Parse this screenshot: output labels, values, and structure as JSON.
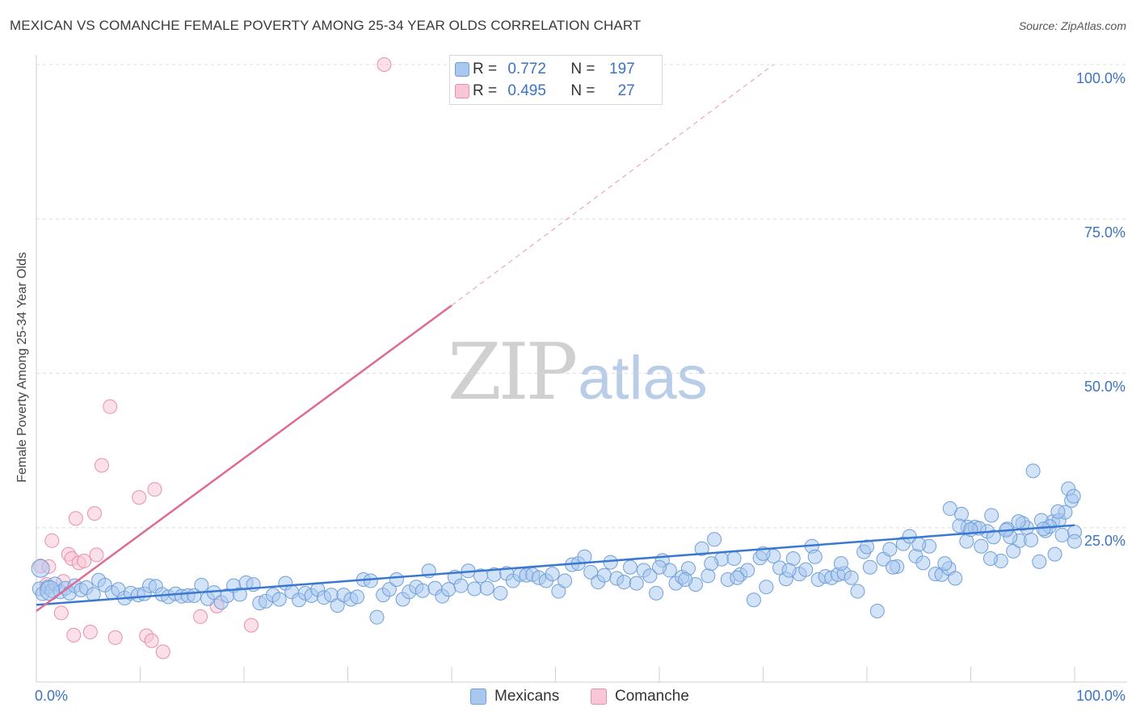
{
  "title": "MEXICAN VS COMANCHE FEMALE POVERTY AMONG 25-34 YEAR OLDS CORRELATION CHART",
  "source": "Source: ZipAtlas.com",
  "watermark": {
    "left": "ZIP",
    "right": "atlas"
  },
  "legend_top": {
    "rows": [
      {
        "r_label": "R = ",
        "r_value": "0.772",
        "n_label": "N = ",
        "n_value": "197",
        "color": "#a8c8f0",
        "border": "#6f9fd8"
      },
      {
        "r_label": "R = ",
        "r_value": "0.495",
        "n_label": "N = ",
        "n_value": "27",
        "color": "#f8c6d6",
        "border": "#e88fac"
      }
    ]
  },
  "legend_bottom": [
    {
      "label": "Mexicans",
      "color": "#a8c8f0",
      "border": "#6f9fd8"
    },
    {
      "label": "Comanche",
      "color": "#f8c6d6",
      "border": "#e88fac"
    }
  ],
  "chart_data": {
    "type": "scatter",
    "title": "MEXICAN VS COMANCHE FEMALE POVERTY AMONG 25-34 YEAR OLDS CORRELATION CHART",
    "xlabel": "",
    "ylabel": "Female Poverty Among 25-34 Year Olds",
    "xlim": [
      0,
      100
    ],
    "ylim": [
      0,
      100
    ],
    "x_tick_labels": [
      "0.0%",
      "100.0%"
    ],
    "y_tick_labels": [
      "25.0%",
      "50.0%",
      "75.0%",
      "100.0%"
    ],
    "y_ticks": [
      25,
      50,
      75,
      100
    ],
    "grid": true,
    "legend_position": "top-center",
    "colors": {
      "mexicans": "#6f9fd8",
      "mexicans_fill": "#a8c8f0",
      "mexicans_line": "#3a78d0",
      "comanche": "#e88fac",
      "comanche_fill": "#f8c6d6",
      "comanche_line": "#e06a94"
    },
    "series": [
      {
        "name": "Mexicans",
        "r": 0.772,
        "n": 197,
        "trend": {
          "x": [
            0,
            100
          ],
          "y": [
            12.5,
            25.4
          ]
        },
        "points": [
          [
            0.3,
            15.1
          ],
          [
            0.6,
            14.3
          ],
          [
            1.1,
            15.4
          ],
          [
            1.5,
            14.8
          ],
          [
            1.8,
            15.9
          ],
          [
            2.3,
            14.6
          ],
          [
            2.8,
            15.2
          ],
          [
            3.2,
            14.4
          ],
          [
            3.7,
            15.6
          ],
          [
            4.3,
            14.9
          ],
          [
            4.8,
            15.3
          ],
          [
            5.5,
            14.2
          ],
          [
            6.0,
            16.5
          ],
          [
            6.6,
            15.7
          ],
          [
            7.3,
            14.5
          ],
          [
            7.9,
            15.0
          ],
          [
            8.5,
            13.6
          ],
          [
            9.1,
            14.4
          ],
          [
            9.8,
            14.1
          ],
          [
            10.4,
            14.3
          ],
          [
            10.9,
            15.6
          ],
          [
            11.5,
            15.5
          ],
          [
            12.1,
            14.2
          ],
          [
            12.7,
            13.8
          ],
          [
            13.4,
            14.3
          ],
          [
            14.0,
            13.9
          ],
          [
            14.6,
            14.0
          ],
          [
            15.2,
            14.0
          ],
          [
            15.9,
            15.7
          ],
          [
            16.5,
            13.5
          ],
          [
            17.1,
            14.5
          ],
          [
            17.8,
            12.9
          ],
          [
            18.4,
            14.0
          ],
          [
            19.0,
            15.6
          ],
          [
            19.6,
            14.2
          ],
          [
            20.2,
            16.1
          ],
          [
            20.9,
            15.8
          ],
          [
            21.5,
            12.8
          ],
          [
            22.1,
            13.1
          ],
          [
            22.8,
            14.1
          ],
          [
            23.4,
            13.4
          ],
          [
            24.0,
            16.0
          ],
          [
            24.6,
            14.6
          ],
          [
            25.3,
            13.3
          ],
          [
            25.9,
            14.4
          ],
          [
            26.5,
            14.0
          ],
          [
            27.1,
            15.0
          ],
          [
            27.7,
            13.7
          ],
          [
            28.4,
            14.1
          ],
          [
            29.0,
            12.4
          ],
          [
            29.6,
            14.1
          ],
          [
            30.3,
            13.4
          ],
          [
            30.9,
            13.8
          ],
          [
            31.5,
            16.6
          ],
          [
            32.2,
            16.4
          ],
          [
            32.8,
            10.5
          ],
          [
            33.4,
            14.1
          ],
          [
            34.0,
            15.0
          ],
          [
            34.7,
            16.6
          ],
          [
            35.3,
            13.4
          ],
          [
            35.9,
            14.6
          ],
          [
            36.6,
            15.4
          ],
          [
            37.2,
            14.8
          ],
          [
            37.8,
            18.0
          ],
          [
            38.4,
            15.2
          ],
          [
            39.1,
            13.9
          ],
          [
            39.7,
            15.0
          ],
          [
            40.3,
            17.0
          ],
          [
            40.9,
            15.6
          ],
          [
            41.6,
            18.0
          ],
          [
            42.2,
            15.1
          ],
          [
            42.8,
            17.2
          ],
          [
            43.4,
            15.2
          ],
          [
            44.1,
            17.4
          ],
          [
            44.7,
            14.4
          ],
          [
            45.3,
            17.6
          ],
          [
            45.9,
            16.4
          ],
          [
            46.6,
            17.4
          ],
          [
            47.2,
            17.3
          ],
          [
            47.8,
            17.4
          ],
          [
            48.4,
            16.9
          ],
          [
            49.1,
            16.4
          ],
          [
            49.7,
            17.5
          ],
          [
            50.3,
            14.7
          ],
          [
            50.9,
            16.4
          ],
          [
            51.6,
            19.0
          ],
          [
            52.2,
            19.2
          ],
          [
            52.8,
            20.3
          ],
          [
            53.4,
            17.8
          ],
          [
            54.1,
            16.2
          ],
          [
            54.7,
            17.3
          ],
          [
            55.3,
            19.4
          ],
          [
            55.9,
            16.8
          ],
          [
            56.6,
            16.2
          ],
          [
            57.2,
            18.6
          ],
          [
            57.8,
            16.0
          ],
          [
            58.5,
            18.1
          ],
          [
            59.1,
            17.2
          ],
          [
            59.7,
            14.4
          ],
          [
            60.3,
            19.7
          ],
          [
            61.0,
            18.1
          ],
          [
            61.6,
            16.0
          ],
          [
            62.2,
            17.0
          ],
          [
            62.8,
            18.4
          ],
          [
            63.5,
            15.8
          ],
          [
            64.1,
            21.6
          ],
          [
            64.7,
            17.2
          ],
          [
            65.3,
            23.1
          ],
          [
            66.0,
            19.9
          ],
          [
            66.6,
            16.6
          ],
          [
            67.2,
            20.0
          ],
          [
            67.8,
            17.4
          ],
          [
            68.5,
            18.1
          ],
          [
            69.1,
            13.3
          ],
          [
            69.7,
            20.1
          ],
          [
            70.3,
            15.4
          ],
          [
            71.0,
            20.4
          ],
          [
            71.6,
            18.5
          ],
          [
            72.2,
            16.7
          ],
          [
            72.9,
            20.0
          ],
          [
            73.5,
            17.5
          ],
          [
            74.1,
            18.2
          ],
          [
            74.7,
            22.0
          ],
          [
            75.3,
            16.6
          ],
          [
            76.0,
            17.1
          ],
          [
            76.6,
            16.9
          ],
          [
            77.2,
            17.4
          ],
          [
            77.8,
            17.6
          ],
          [
            78.5,
            16.9
          ],
          [
            79.1,
            14.7
          ],
          [
            79.7,
            21.1
          ],
          [
            80.3,
            18.6
          ],
          [
            81.0,
            11.5
          ],
          [
            81.6,
            19.9
          ],
          [
            82.2,
            21.5
          ],
          [
            82.9,
            18.7
          ],
          [
            83.5,
            22.4
          ],
          [
            84.1,
            23.6
          ],
          [
            84.7,
            20.4
          ],
          [
            85.4,
            19.3
          ],
          [
            86.0,
            22.0
          ],
          [
            86.6,
            17.5
          ],
          [
            87.2,
            17.4
          ],
          [
            87.9,
            18.4
          ],
          [
            88.5,
            16.8
          ],
          [
            89.1,
            27.2
          ],
          [
            89.7,
            25.1
          ],
          [
            90.4,
            25.1
          ],
          [
            91.0,
            22.0
          ],
          [
            91.6,
            24.4
          ],
          [
            92.2,
            23.5
          ],
          [
            92.9,
            19.6
          ],
          [
            93.5,
            24.8
          ],
          [
            94.1,
            21.2
          ],
          [
            94.7,
            22.9
          ],
          [
            95.4,
            25.0
          ],
          [
            96.0,
            34.2
          ],
          [
            96.6,
            19.5
          ],
          [
            97.2,
            24.5
          ],
          [
            97.9,
            26.0
          ],
          [
            98.5,
            26.2
          ],
          [
            99.1,
            27.5
          ],
          [
            99.7,
            29.4
          ],
          [
            100.0,
            24.3
          ],
          [
            88.0,
            28.1
          ],
          [
            90.8,
            24.9
          ],
          [
            92.0,
            27.0
          ],
          [
            93.8,
            23.5
          ],
          [
            95.0,
            25.7
          ],
          [
            96.8,
            26.2
          ],
          [
            97.6,
            25.2
          ],
          [
            98.4,
            27.6
          ],
          [
            99.4,
            31.3
          ],
          [
            100.0,
            22.8
          ],
          [
            88.9,
            25.3
          ],
          [
            89.6,
            22.8
          ],
          [
            91.9,
            20.0
          ],
          [
            93.4,
            24.6
          ],
          [
            94.6,
            26.0
          ],
          [
            95.8,
            23.0
          ],
          [
            97.0,
            24.8
          ],
          [
            98.1,
            20.7
          ],
          [
            98.8,
            23.8
          ],
          [
            99.9,
            30.1
          ],
          [
            60.0,
            18.6
          ],
          [
            62.5,
            16.6
          ],
          [
            65.0,
            19.2
          ],
          [
            67.5,
            16.9
          ],
          [
            70.0,
            20.8
          ],
          [
            72.5,
            18.1
          ],
          [
            75.0,
            20.3
          ],
          [
            77.5,
            19.2
          ],
          [
            80.0,
            21.9
          ],
          [
            82.5,
            18.6
          ],
          [
            85.0,
            22.3
          ],
          [
            87.5,
            19.2
          ],
          [
            90.0,
            24.7
          ]
        ]
      },
      {
        "name": "Comanche",
        "r": 0.495,
        "n": 27,
        "trend": {
          "x": [
            0,
            40
          ],
          "y": [
            11.5,
            61.0
          ]
        },
        "trend_dashed": {
          "x": [
            40,
            71
          ],
          "y": [
            61.0,
            100.0
          ]
        },
        "points": [
          [
            0.4,
            18.8
          ],
          [
            1.2,
            18.7
          ],
          [
            1.5,
            22.9
          ],
          [
            2.4,
            11.2
          ],
          [
            2.6,
            16.3
          ],
          [
            3.1,
            20.7
          ],
          [
            3.4,
            20.0
          ],
          [
            3.6,
            7.6
          ],
          [
            3.8,
            26.5
          ],
          [
            4.1,
            19.3
          ],
          [
            4.6,
            19.6
          ],
          [
            5.2,
            8.1
          ],
          [
            5.6,
            27.3
          ],
          [
            5.8,
            20.6
          ],
          [
            6.3,
            35.1
          ],
          [
            7.1,
            44.6
          ],
          [
            7.6,
            7.2
          ],
          [
            9.9,
            29.9
          ],
          [
            10.6,
            7.5
          ],
          [
            11.1,
            6.7
          ],
          [
            11.4,
            31.2
          ],
          [
            12.2,
            4.9
          ],
          [
            15.8,
            10.6
          ],
          [
            17.4,
            12.3
          ],
          [
            20.7,
            9.2
          ],
          [
            33.5,
            100.0
          ],
          [
            1.0,
            15.8
          ]
        ]
      }
    ]
  }
}
